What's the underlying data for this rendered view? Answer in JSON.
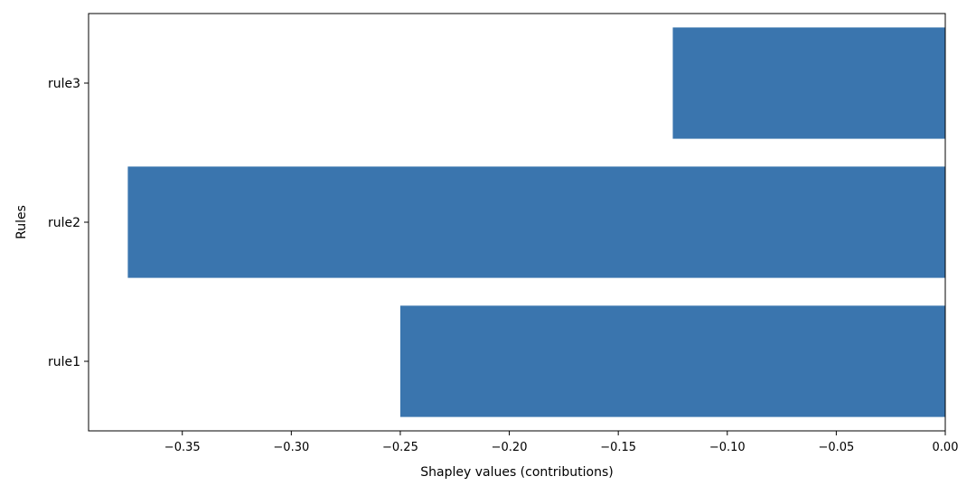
{
  "chart_data": {
    "type": "bar",
    "orientation": "horizontal",
    "title": "",
    "xlabel": "Shapley values (contributions)",
    "ylabel": "Rules",
    "categories": [
      "rule1",
      "rule2",
      "rule3"
    ],
    "values": [
      -0.25,
      -0.375,
      -0.125
    ],
    "xlim": [
      -0.393,
      0.0
    ],
    "xticks": [
      -0.35,
      -0.3,
      -0.25,
      -0.2,
      -0.15,
      -0.1,
      -0.05,
      0.0
    ],
    "xtick_labels": [
      "−0.35",
      "−0.30",
      "−0.25",
      "−0.20",
      "−0.15",
      "−0.10",
      "−0.05",
      "0.00"
    ],
    "bar_color": "#3a75ae",
    "grid": false,
    "legend": "none"
  }
}
